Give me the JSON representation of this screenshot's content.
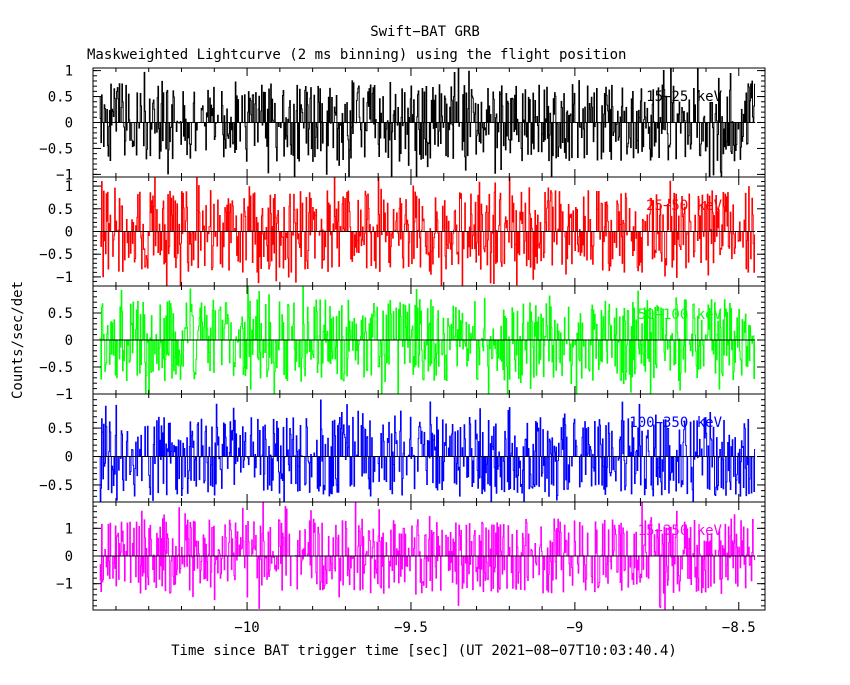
{
  "chart_data": {
    "type": "line",
    "title": "Swift−BAT GRB",
    "subtitle": "Maskweighted Lightcurve (2 ms binning) using the flight position",
    "xlabel": "Time since BAT trigger time [sec] (UT 2021−08−07T10:03:40.4)",
    "ylabel": "Counts/sec/det",
    "xlim": [
      -10.47,
      -8.42
    ],
    "xticks": [
      -10,
      -9.5,
      -9,
      -8.5
    ],
    "xtick_labels": [
      "−10",
      "−9.5",
      "−9",
      "−8.5"
    ],
    "data_range": [
      -10.45,
      -8.45
    ],
    "bin_width": 0.002,
    "grid": false,
    "panels": [
      {
        "name": "15−25 keV",
        "color": "#000000",
        "ylim": [
          -1.05,
          1.05
        ],
        "yticks": [
          1,
          0.5,
          0,
          -0.5,
          -1
        ],
        "ytick_labels": [
          "1",
          "0.5",
          "0",
          "−0.5",
          "−1"
        ],
        "amplitude": 0.75,
        "seed": 11
      },
      {
        "name": "25−50 keV",
        "color": "#ff0000",
        "ylim": [
          -1.2,
          1.2
        ],
        "yticks": [
          1,
          0.5,
          0,
          -0.5,
          -1
        ],
        "ytick_labels": [
          "1",
          "0.5",
          "0",
          "−0.5",
          "−1"
        ],
        "amplitude": 0.9,
        "seed": 23
      },
      {
        "name": "50−100 keV",
        "color": "#00ff00",
        "ylim": [
          -1.0,
          1.0
        ],
        "yticks": [
          0.5,
          0,
          -0.5,
          -1
        ],
        "ytick_labels": [
          "0.5",
          "0",
          "−0.5",
          "−1"
        ],
        "amplitude": 0.75,
        "seed": 37
      },
      {
        "name": "100−350 keV",
        "color": "#0000ff",
        "ylim": [
          -0.8,
          1.1
        ],
        "yticks": [
          0.5,
          0,
          -0.5
        ],
        "ytick_labels": [
          "0.5",
          "0",
          "−0.5"
        ],
        "amplitude": 0.7,
        "seed": 53
      },
      {
        "name": "15−350 keV",
        "color": "#ff00ff",
        "ylim": [
          -1.95,
          1.95
        ],
        "yticks": [
          1,
          0,
          -1
        ],
        "ytick_labels": [
          "1",
          "0",
          "−1"
        ],
        "amplitude": 1.35,
        "seed": 71
      }
    ]
  }
}
